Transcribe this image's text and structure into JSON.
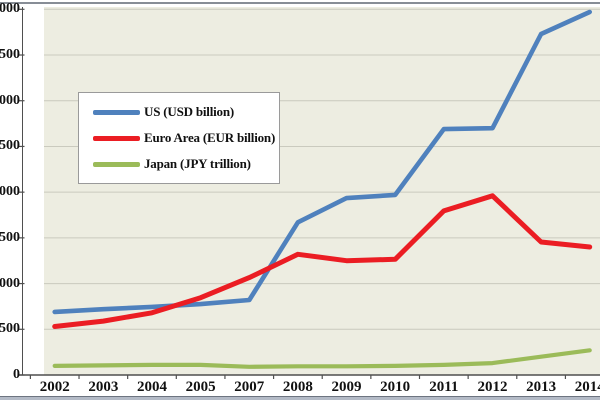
{
  "chart_data": {
    "type": "line",
    "title": "",
    "categories": [
      "2002",
      "2003",
      "2004",
      "2005",
      "2007",
      "2008",
      "2009",
      "2010",
      "2011",
      "2012",
      "2013",
      "2014"
    ],
    "series": [
      {
        "name": "US (USD billion)",
        "color": "#4F81BD",
        "values": [
          690,
          720,
          745,
          775,
          820,
          1670,
          1935,
          1970,
          2690,
          2700,
          3730,
          3970
        ]
      },
      {
        "name": "Euro Area (EUR billion)",
        "color": "#EB1D23",
        "values": [
          530,
          590,
          680,
          845,
          1065,
          1320,
          1250,
          1265,
          1795,
          1960,
          1455,
          1400
        ]
      },
      {
        "name": "Japan (JPY trillion)",
        "color": "#9BBB59",
        "values": [
          100,
          105,
          110,
          110,
          90,
          95,
          95,
          100,
          110,
          130,
          200,
          270
        ]
      }
    ],
    "xlabel": "",
    "ylabel": "",
    "ylim": [
      0,
      4000
    ],
    "y_tick_step": 500,
    "grid": true,
    "legend_position": "upper-left-inside"
  },
  "axis": {
    "y_visible_labels": [
      "000",
      "500",
      "000",
      "500",
      "000",
      "500",
      "000",
      "500",
      "0"
    ],
    "y_full_tick_values": [
      4000,
      3500,
      3000,
      2500,
      2000,
      1500,
      1000,
      500,
      0
    ],
    "x_labels": [
      "2002",
      "2003",
      "2004",
      "2005",
      "2007",
      "2008",
      "2009",
      "2010",
      "2011",
      "2012",
      "2013",
      "2014"
    ]
  },
  "legend": {
    "items": [
      {
        "label": "US (USD billion)"
      },
      {
        "label": "Euro Area (EUR billion)"
      },
      {
        "label": "Japan (JPY trillion)"
      }
    ]
  },
  "colors": {
    "plot_background": "#EDEDE1",
    "gridline": "#CACABE",
    "axis_line": "#4F4F4F",
    "page_background": "#FFFFFF",
    "top_border": "#878D96",
    "bottom_border": "#B3BAC6",
    "legend_border": "#9A9A9A"
  }
}
